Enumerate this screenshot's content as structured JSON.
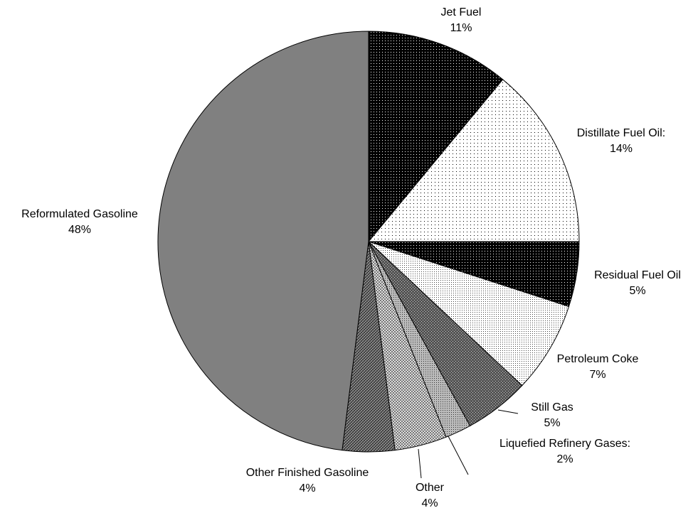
{
  "chart_data": {
    "type": "pie",
    "title": "",
    "slices": [
      {
        "name": "Jet Fuel",
        "value": 11,
        "value_label": "11%",
        "fill": "dots-black"
      },
      {
        "name": "Distillate Fuel Oil:",
        "value": 14,
        "value_label": "14%",
        "fill": "dots-white"
      },
      {
        "name": "Residual Fuel Oil",
        "value": 5,
        "value_label": "5%",
        "fill": "dots-black"
      },
      {
        "name": "Petroleum Coke",
        "value": 7,
        "value_label": "7%",
        "fill": "dots-light"
      },
      {
        "name": "Still Gas",
        "value": 5,
        "value_label": "5%",
        "fill": "grid-dark"
      },
      {
        "name": "Liquefied Refinery Gases:",
        "value": 2,
        "value_label": "2%",
        "fill": "dots-mid"
      },
      {
        "name": "Other",
        "value": 4,
        "value_label": "4%",
        "fill": "checker-light"
      },
      {
        "name": "Other Finished Gasoline",
        "value": 4,
        "value_label": "4%",
        "fill": "hatch-dark"
      },
      {
        "name": "Reformulated Gasoline",
        "value": 48,
        "value_label": "48%",
        "fill": "#808080"
      }
    ],
    "start": "12 o'clock",
    "direction": "clockwise",
    "legend": "none"
  }
}
